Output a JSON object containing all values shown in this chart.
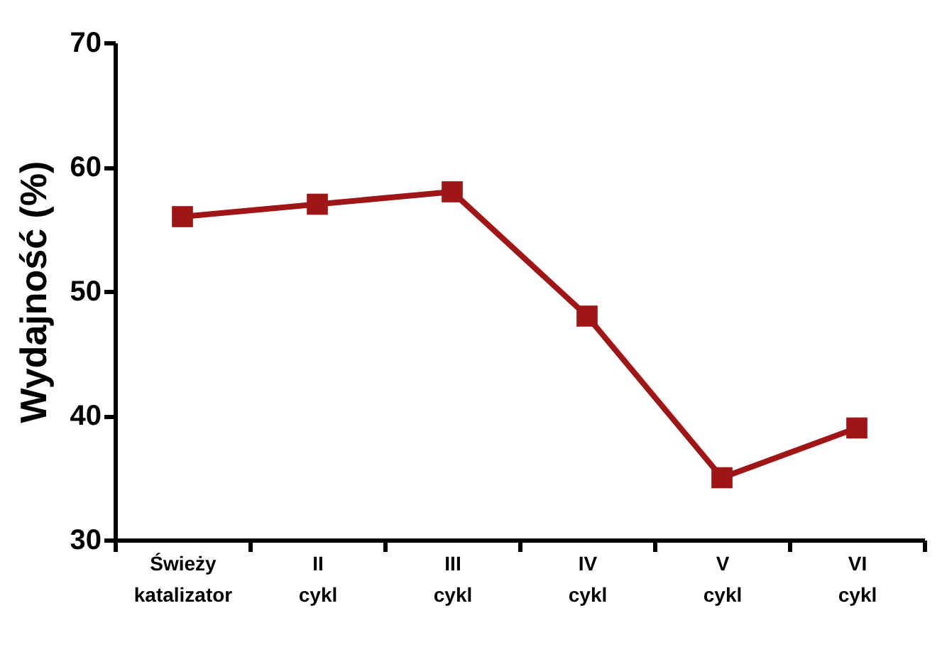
{
  "chart_data": {
    "type": "line",
    "ylabel": "Wydajność (%)",
    "categories": [
      "Świeży katalizator",
      "II cykl",
      "III cykl",
      "IV cykl",
      "V cykl",
      "VI cykl"
    ],
    "series": [
      {
        "color": "#a01515",
        "values": [
          56,
          57,
          58,
          48,
          35,
          39
        ]
      }
    ],
    "ylim": [
      30,
      70
    ],
    "yticks": [
      30,
      40,
      50,
      60,
      70
    ],
    "grid": false,
    "marker": "square"
  }
}
